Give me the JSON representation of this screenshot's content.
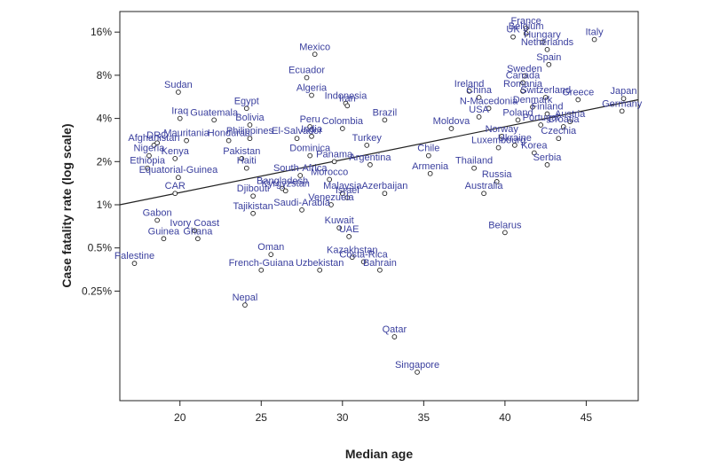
{
  "chart_data": {
    "type": "scatter",
    "title": "",
    "xlabel": "Median age",
    "ylabel": "Case fatality rate (log scale)",
    "x_axis": {
      "range": [
        16.3,
        48.2
      ],
      "ticks": [
        20,
        25,
        30,
        35,
        40,
        45
      ],
      "tick_labels": [
        "20",
        "25",
        "30",
        "35",
        "40",
        "45"
      ]
    },
    "y_axis": {
      "scale": "log2",
      "range_percent": [
        0.06,
        20
      ],
      "ticks": [
        0.25,
        0.5,
        1,
        2,
        4,
        8,
        16
      ],
      "tick_labels": [
        "0.25%",
        "0.5%",
        "1%",
        "2%",
        "4%",
        "8%",
        "16%"
      ]
    },
    "grid": false,
    "legend": "none",
    "trend_line": {
      "from": {
        "x": 16.3,
        "y": 1.0
      },
      "to": {
        "x": 48.2,
        "y": 5.4
      }
    },
    "marker_color": "#222222",
    "label_color": "#3a3f9e",
    "points": [
      {
        "name": "France",
        "x": 41.3,
        "y": 17.0
      },
      {
        "name": "Belgium",
        "x": 41.3,
        "y": 15.6
      },
      {
        "name": "UK",
        "x": 40.5,
        "y": 14.8
      },
      {
        "name": "Hungary",
        "x": 42.3,
        "y": 13.6
      },
      {
        "name": "Italy",
        "x": 45.5,
        "y": 14.2
      },
      {
        "name": "Netherlands",
        "x": 42.6,
        "y": 12.1
      },
      {
        "name": "Mexico",
        "x": 28.3,
        "y": 11.2
      },
      {
        "name": "Spain",
        "x": 42.7,
        "y": 9.5
      },
      {
        "name": "Sweden",
        "x": 41.2,
        "y": 7.9
      },
      {
        "name": "Canada",
        "x": 41.1,
        "y": 7.1
      },
      {
        "name": "Ecuador",
        "x": 27.8,
        "y": 7.7
      },
      {
        "name": "Ireland",
        "x": 37.8,
        "y": 6.2
      },
      {
        "name": "Romania",
        "x": 41.1,
        "y": 6.2
      },
      {
        "name": "Sudan",
        "x": 19.9,
        "y": 6.1
      },
      {
        "name": "Algeria",
        "x": 28.1,
        "y": 5.8
      },
      {
        "name": "China",
        "x": 38.4,
        "y": 5.6
      },
      {
        "name": "Indonesia",
        "x": 30.2,
        "y": 5.1
      },
      {
        "name": "Egypt",
        "x": 24.1,
        "y": 4.7
      },
      {
        "name": "Switzerland",
        "x": 42.5,
        "y": 5.6
      },
      {
        "name": "Greece",
        "x": 44.5,
        "y": 5.4
      },
      {
        "name": "Japan",
        "x": 47.3,
        "y": 5.5
      },
      {
        "name": "Iran",
        "x": 30.3,
        "y": 4.9
      },
      {
        "name": "N-Macedonia",
        "x": 39.0,
        "y": 4.7
      },
      {
        "name": "Denmark",
        "x": 41.7,
        "y": 4.8
      },
      {
        "name": "Germany",
        "x": 47.2,
        "y": 4.5
      },
      {
        "name": "Finland",
        "x": 42.6,
        "y": 4.3
      },
      {
        "name": "USA",
        "x": 38.4,
        "y": 4.1
      },
      {
        "name": "Iraq",
        "x": 20.0,
        "y": 4.0
      },
      {
        "name": "Poland",
        "x": 40.8,
        "y": 3.9
      },
      {
        "name": "Austria",
        "x": 44.0,
        "y": 3.8
      },
      {
        "name": "Guatemala",
        "x": 22.1,
        "y": 3.9
      },
      {
        "name": "Peru",
        "x": 28.0,
        "y": 3.5
      },
      {
        "name": "Brazil",
        "x": 32.6,
        "y": 3.9
      },
      {
        "name": "Portugal",
        "x": 42.2,
        "y": 3.6
      },
      {
        "name": "Croatia",
        "x": 43.6,
        "y": 3.5
      },
      {
        "name": "Bolivia",
        "x": 24.3,
        "y": 3.6
      },
      {
        "name": "Colombia",
        "x": 30.0,
        "y": 3.4
      },
      {
        "name": "Moldova",
        "x": 36.7,
        "y": 3.4
      },
      {
        "name": "Norway",
        "x": 39.8,
        "y": 3.0
      },
      {
        "name": "Czechia",
        "x": 43.3,
        "y": 2.9
      },
      {
        "name": "Afghanistan",
        "x": 18.4,
        "y": 2.6
      },
      {
        "name": "Philippines",
        "x": 24.3,
        "y": 2.9
      },
      {
        "name": "India",
        "x": 28.1,
        "y": 3.0
      },
      {
        "name": "El-Salvador",
        "x": 27.2,
        "y": 2.9
      },
      {
        "name": "DRC",
        "x": 18.6,
        "y": 2.7
      },
      {
        "name": "Mauritania",
        "x": 20.4,
        "y": 2.8
      },
      {
        "name": "Honduras",
        "x": 23.0,
        "y": 2.8
      },
      {
        "name": "Turkey",
        "x": 31.5,
        "y": 2.6
      },
      {
        "name": "Luxembourg",
        "x": 39.6,
        "y": 2.5
      },
      {
        "name": "Ukraine",
        "x": 40.6,
        "y": 2.6
      },
      {
        "name": "Korea",
        "x": 41.8,
        "y": 2.3
      },
      {
        "name": "Nigeria",
        "x": 18.1,
        "y": 2.2
      },
      {
        "name": "Kenya",
        "x": 19.7,
        "y": 2.1
      },
      {
        "name": "Chile",
        "x": 35.3,
        "y": 2.2
      },
      {
        "name": "Dominica",
        "x": 28.0,
        "y": 2.2
      },
      {
        "name": "Pakistan",
        "x": 23.8,
        "y": 2.1
      },
      {
        "name": "Serbia",
        "x": 42.6,
        "y": 1.9
      },
      {
        "name": "Argentina",
        "x": 31.7,
        "y": 1.9
      },
      {
        "name": "Panama",
        "x": 29.5,
        "y": 2.0
      },
      {
        "name": "Thailand",
        "x": 38.1,
        "y": 1.8
      },
      {
        "name": "Ethiopia",
        "x": 18.0,
        "y": 1.8
      },
      {
        "name": "Haiti",
        "x": 24.1,
        "y": 1.8
      },
      {
        "name": "Armenia",
        "x": 35.4,
        "y": 1.65
      },
      {
        "name": "Equatorial-Guinea",
        "x": 19.9,
        "y": 1.55
      },
      {
        "name": "South-Africa",
        "x": 27.4,
        "y": 1.6
      },
      {
        "name": "Morocco",
        "x": 29.2,
        "y": 1.5
      },
      {
        "name": "Russia",
        "x": 39.5,
        "y": 1.45
      },
      {
        "name": "Bangladesh",
        "x": 26.3,
        "y": 1.3
      },
      {
        "name": "Malaysia",
        "x": 30.0,
        "y": 1.2
      },
      {
        "name": "CAR",
        "x": 19.7,
        "y": 1.2
      },
      {
        "name": "Azerbaijan",
        "x": 32.6,
        "y": 1.2
      },
      {
        "name": "Australia",
        "x": 38.7,
        "y": 1.2
      },
      {
        "name": "Djibouti",
        "x": 24.5,
        "y": 1.15
      },
      {
        "name": "Kyrgyzstan",
        "x": 26.5,
        "y": 1.25
      },
      {
        "name": "Israel",
        "x": 30.3,
        "y": 1.12
      },
      {
        "name": "Venezuela",
        "x": 29.3,
        "y": 1.0
      },
      {
        "name": "Saudi-Arabia",
        "x": 27.5,
        "y": 0.92
      },
      {
        "name": "Tajikistan",
        "x": 24.5,
        "y": 0.87
      },
      {
        "name": "Gabon",
        "x": 18.6,
        "y": 0.78
      },
      {
        "name": "Kuwait",
        "x": 29.8,
        "y": 0.69
      },
      {
        "name": "Belarus",
        "x": 40.0,
        "y": 0.64
      },
      {
        "name": "Ivory Coast",
        "x": 20.9,
        "y": 0.66
      },
      {
        "name": "Guinea",
        "x": 19.0,
        "y": 0.58
      },
      {
        "name": "Ghana",
        "x": 21.1,
        "y": 0.58
      },
      {
        "name": "UAE",
        "x": 30.4,
        "y": 0.6
      },
      {
        "name": "Oman",
        "x": 25.6,
        "y": 0.45
      },
      {
        "name": "Kazakhstan",
        "x": 30.6,
        "y": 0.43
      },
      {
        "name": "Costa-Rica",
        "x": 31.3,
        "y": 0.4
      },
      {
        "name": "Palestine",
        "x": 17.2,
        "y": 0.39
      },
      {
        "name": "French-Guiana",
        "x": 25.0,
        "y": 0.35
      },
      {
        "name": "Uzbekistan",
        "x": 28.6,
        "y": 0.35
      },
      {
        "name": "Bahrain",
        "x": 32.3,
        "y": 0.35
      },
      {
        "name": "Nepal",
        "x": 24.0,
        "y": 0.2
      },
      {
        "name": "Qatar",
        "x": 33.2,
        "y": 0.12
      },
      {
        "name": "Singapore",
        "x": 34.6,
        "y": 0.068
      }
    ]
  }
}
